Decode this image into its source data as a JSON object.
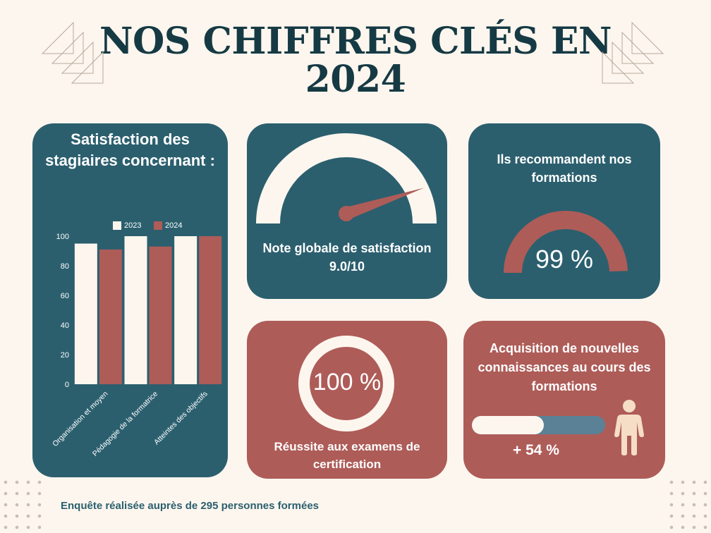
{
  "title": {
    "line1": "NOS CHIFFRES CLÉS EN",
    "line2": "2024"
  },
  "colors": {
    "background": "#fdf6ee",
    "teal": "#2b5f6e",
    "red": "#ae5c58",
    "cream": "#fdf6ee",
    "dark_title": "#163a44",
    "bar_track": "#5a8196"
  },
  "chart_card": {
    "title": "Satisfaction des stagiaires concernant :",
    "legend": [
      "2023",
      "2024"
    ]
  },
  "chart_data": {
    "type": "bar",
    "categories": [
      "Organisation et moyen",
      "Pédagogie de la formatrice",
      "Atteintes des objectifs"
    ],
    "series": [
      {
        "name": "2023",
        "values": [
          95,
          100,
          100
        ],
        "color": "#fdf6ee"
      },
      {
        "name": "2024",
        "values": [
          91,
          93,
          100
        ],
        "color": "#ae5c58"
      }
    ],
    "ylim": [
      0,
      100
    ],
    "yticks": [
      "0",
      "20",
      "40",
      "60",
      "80",
      "100"
    ],
    "legend_position": "top"
  },
  "note_card": {
    "label": "Note globale de satisfaction",
    "value": "9.0/10",
    "score": 9.0,
    "max": 10
  },
  "reco_card": {
    "title": "Ils recommandent nos formations",
    "value": "99 %",
    "percent": 99
  },
  "exam_card": {
    "value": "100 %",
    "percent": 100,
    "label": "Réussite aux examens de certification"
  },
  "acq_card": {
    "title": "Acquisition de nouvelles connaissances au cours des formations",
    "value": "+ 54 %",
    "percent": 54,
    "icon": "person-icon"
  },
  "footer": "Enquête réalisée auprès de 295 personnes formées"
}
